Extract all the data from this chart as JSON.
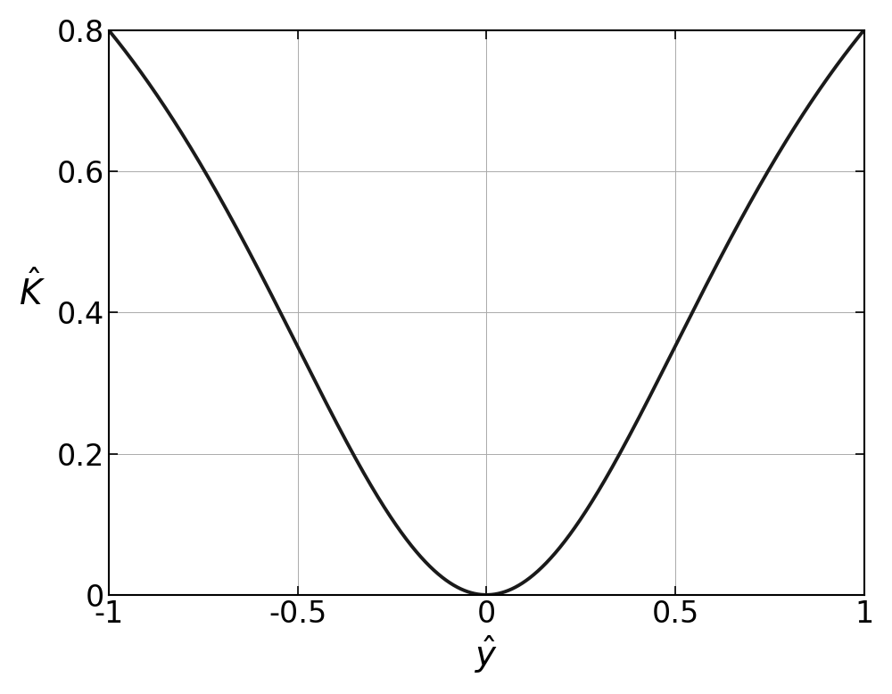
{
  "xlim": [
    -1,
    1
  ],
  "ylim": [
    0,
    0.8
  ],
  "xticks": [
    -1,
    -0.5,
    0,
    0.5,
    1
  ],
  "yticks": [
    0,
    0.2,
    0.4,
    0.6,
    0.8
  ],
  "xticklabels": [
    "-1",
    "-0.5",
    "0",
    "0.5",
    "1"
  ],
  "yticklabels": [
    "0",
    "0.2",
    "0.4",
    "0.6",
    "0.8"
  ],
  "xlabel": "$\\hat{y}$",
  "ylabel": "$\\hat{K}$",
  "line_color": "#1a1a1a",
  "line_width": 2.8,
  "grid_color": "#aaaaaa",
  "grid_linewidth": 0.7,
  "background_color": "#ffffff",
  "figsize": [
    10.0,
    7.78
  ],
  "dpi": 100,
  "font_size": 24,
  "label_font_size": 28,
  "lambda": 5.208
}
